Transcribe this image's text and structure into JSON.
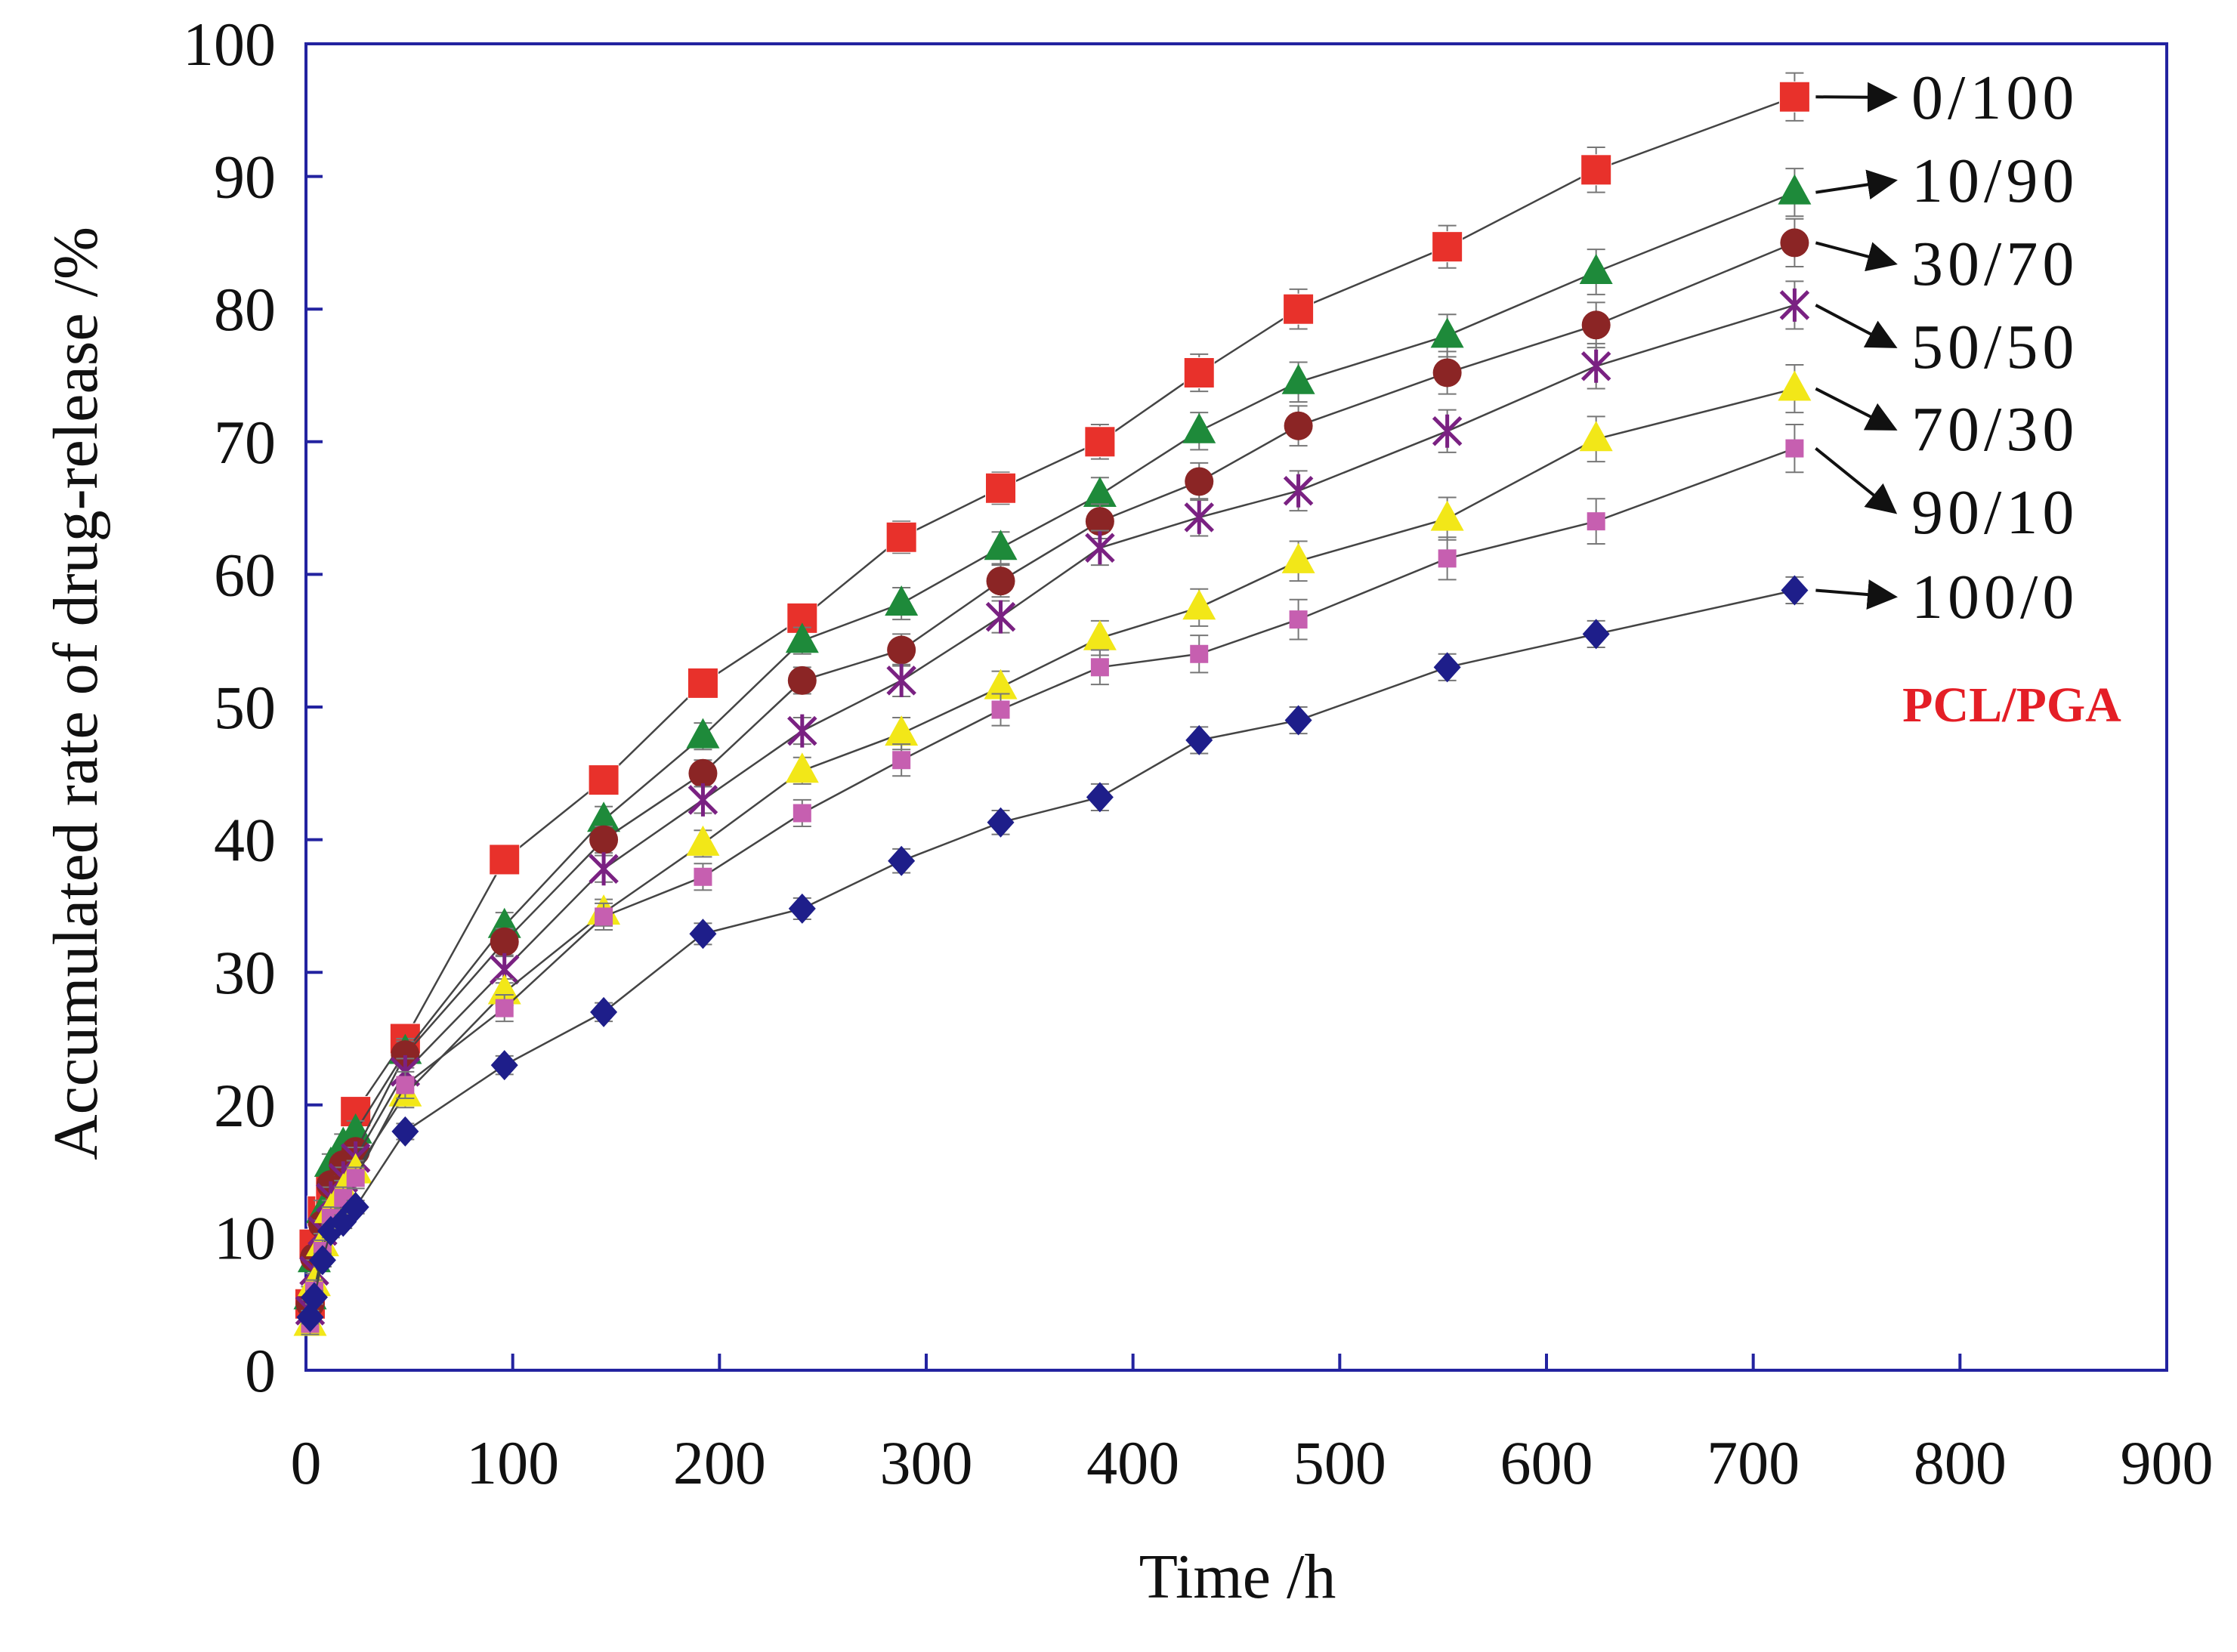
{
  "chart_data": {
    "type": "line",
    "title": "",
    "xlabel": "Time /h",
    "ylabel": "Accumulated rate of drug-release /%",
    "xlim": [
      0,
      900
    ],
    "ylim": [
      0,
      100
    ],
    "xticks": [
      0,
      100,
      200,
      300,
      400,
      500,
      600,
      700,
      800,
      900
    ],
    "yticks": [
      0,
      10,
      20,
      30,
      40,
      50,
      60,
      70,
      80,
      90,
      100
    ],
    "grid": false,
    "legend_title": "PCL/PGA",
    "legend_title_color": "#e41e26",
    "legend_position": "right",
    "x": [
      2,
      4,
      8,
      12,
      18,
      24,
      48,
      96,
      144,
      192,
      240,
      288,
      336,
      384,
      432,
      480,
      552,
      624,
      720
    ],
    "series": [
      {
        "name": "0/100",
        "marker": "square",
        "color": "#e8312b",
        "values": [
          5,
          9.5,
          12,
          13.5,
          15.5,
          19.5,
          25,
          38.5,
          44.5,
          51.8,
          56.7,
          62.8,
          66.5,
          70,
          75.2,
          80,
          84.7,
          90.5,
          96
        ],
        "errors": [
          0.8,
          0.8,
          0.8,
          0.8,
          0.8,
          0.8,
          1,
          1,
          1,
          1,
          1,
          1.2,
          1.2,
          1.3,
          1.4,
          1.5,
          1.6,
          1.7,
          1.8
        ]
      },
      {
        "name": "10/90",
        "marker": "triangle",
        "color": "#1e8a3a",
        "values": [
          5.5,
          8.3,
          12,
          15.5,
          17,
          18,
          24,
          33.5,
          41.5,
          47.8,
          55,
          57.8,
          62,
          66,
          70.8,
          74.5,
          78,
          82.8,
          88.8
        ],
        "errors": [
          0.8,
          0.8,
          0.8,
          0.8,
          0.8,
          0.8,
          1,
          1,
          1,
          1,
          1,
          1.2,
          1.2,
          1.3,
          1.4,
          1.5,
          1.6,
          1.7,
          1.8
        ]
      },
      {
        "name": "30/70",
        "marker": "circle",
        "color": "#8b2525",
        "values": [
          5,
          8.5,
          11,
          14,
          15.5,
          16.5,
          23.8,
          32.3,
          40,
          45,
          52,
          54.3,
          59.5,
          64,
          67,
          71.2,
          75.2,
          78.8,
          85
        ],
        "errors": [
          0.8,
          0.8,
          0.8,
          0.8,
          0.8,
          0.8,
          1,
          1,
          1,
          1,
          1,
          1.2,
          1.2,
          1.3,
          1.4,
          1.5,
          1.6,
          1.7,
          1.8
        ]
      },
      {
        "name": "50/50",
        "marker": "star",
        "color": "#7a2182",
        "values": [
          4.5,
          7.5,
          10.5,
          13,
          14.5,
          16,
          22.5,
          30.2,
          37.8,
          43,
          48.2,
          52,
          56.8,
          62,
          64.3,
          66.3,
          70.8,
          75.7,
          80.3
        ],
        "errors": [
          0.8,
          0.8,
          0.8,
          0.8,
          0.8,
          0.8,
          1,
          1,
          1,
          1,
          1,
          1.2,
          1.2,
          1.3,
          1.4,
          1.5,
          1.6,
          1.7,
          1.8
        ]
      },
      {
        "name": "70/30",
        "marker": "triangle",
        "color": "#f2e718",
        "values": [
          3.5,
          6.5,
          9.5,
          12,
          13.5,
          15,
          20.8,
          28.5,
          34.5,
          39.7,
          45.2,
          48,
          51.5,
          55.2,
          57.5,
          61,
          64.2,
          70.2,
          74
        ],
        "errors": [
          0.8,
          0.8,
          0.8,
          0.8,
          0.8,
          0.8,
          1,
          1,
          1,
          1,
          1,
          1.2,
          1.2,
          1.3,
          1.4,
          1.5,
          1.6,
          1.7,
          1.8
        ]
      },
      {
        "name": "90/10",
        "marker": "small-square",
        "color": "#c65fb0",
        "values": [
          3.5,
          6,
          9,
          11.5,
          13,
          14.5,
          21.5,
          27.3,
          34.2,
          37.2,
          42,
          46,
          49.8,
          53,
          54,
          56.6,
          61.2,
          64,
          69.5
        ],
        "errors": [
          0.8,
          0.8,
          0.8,
          0.8,
          0.8,
          0.8,
          1,
          1,
          1,
          1,
          1,
          1.2,
          1.2,
          1.3,
          1.4,
          1.5,
          1.6,
          1.7,
          1.8
        ]
      },
      {
        "name": "100/0",
        "marker": "diamond",
        "color": "#1e1e8a",
        "values": [
          4,
          5.5,
          8.3,
          10.5,
          11.2,
          12.3,
          18,
          23,
          27,
          32.9,
          34.8,
          38.4,
          41.3,
          43.2,
          47.5,
          49,
          53,
          55.5,
          58.8
        ],
        "errors": [
          0.5,
          0.5,
          0.5,
          0.5,
          0.5,
          0.5,
          0.6,
          0.7,
          0.7,
          0.8,
          0.8,
          0.9,
          0.9,
          1,
          1,
          1,
          1,
          1,
          1
        ]
      }
    ]
  }
}
